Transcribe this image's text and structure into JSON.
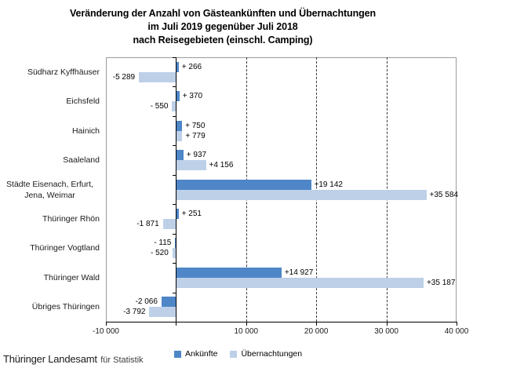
{
  "title": {
    "lines": [
      "Veränderung  der Anzahl von Gästeankünften  und Übernachtungen",
      "im Juli 2019 gegenüber  Juli 2018",
      "nach Reisegebieten (einschl. Camping)"
    ]
  },
  "footer": {
    "org": "Thüringer Landesamt",
    "suffix": "für Statistik"
  },
  "legend": {
    "items": [
      {
        "label": "Ankünfte",
        "color": "#4E86C8"
      },
      {
        "label": "Übernachtungen",
        "color": "#BDD0E8"
      }
    ]
  },
  "chart_data": {
    "type": "bar",
    "orientation": "horizontal",
    "title": "Veränderung der Anzahl von Gästeankünften und Übernachtungen im Juli 2019 gegenüber Juli 2018 nach Reisegebieten (einschl. Camping)",
    "categories": [
      "Südharz Kyffhäuser",
      "Eichsfeld",
      "Hainich",
      "Saaleland",
      "Städte Eisenach, Erfurt, Jena, Weimar",
      "Thüringer Rhön",
      "Thüringer Vogtland",
      "Thüringer Wald",
      "Übriges Thüringen"
    ],
    "series": [
      {
        "name": "Ankünfte",
        "color": "#4E86C8",
        "values": [
          266,
          370,
          750,
          937,
          19142,
          251,
          -115,
          14927,
          -2066
        ],
        "labels": [
          "+ 266",
          "+ 370",
          "+ 750",
          "+ 937",
          "+19 142",
          "+ 251",
          "- 115",
          "+14 927",
          "-2 066"
        ]
      },
      {
        "name": "Übernachtungen",
        "color": "#BDD0E8",
        "values": [
          -5289,
          -550,
          779,
          4156,
          35584,
          -1871,
          -520,
          35187,
          -3792
        ],
        "labels": [
          "-5 289",
          "- 550",
          "+ 779",
          "+4 156",
          "+35 584",
          "-1 871",
          "- 520",
          "+35 187",
          "-3 792"
        ]
      }
    ],
    "xlim": [
      -10000,
      40000
    ],
    "x_ticks": [
      {
        "value": -10000,
        "label": "-10 000"
      },
      {
        "value": 0,
        "label": ""
      },
      {
        "value": 10000,
        "label": "10 000"
      },
      {
        "value": 20000,
        "label": "20 000"
      },
      {
        "value": 30000,
        "label": "30 000"
      },
      {
        "value": 40000,
        "label": "40 000"
      }
    ],
    "gridlines": [
      10000,
      20000,
      30000
    ],
    "grid_style": "dashed",
    "legend_position": "bottom",
    "source": "Thüringer Landesamt für Statistik"
  }
}
